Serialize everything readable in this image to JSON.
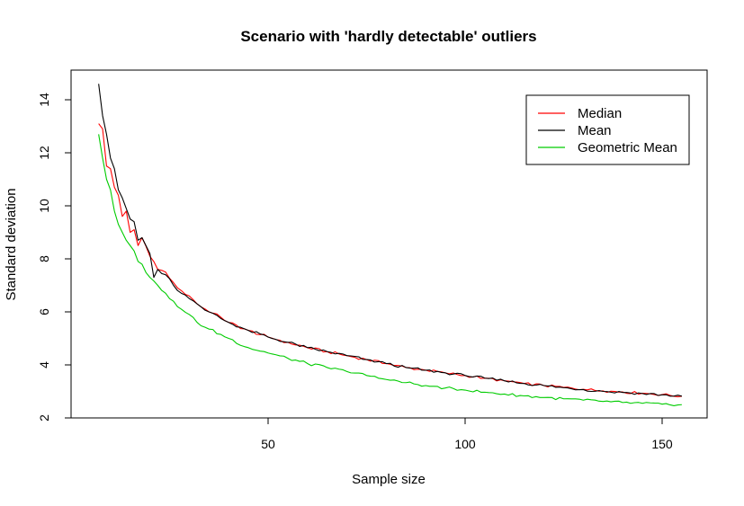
{
  "chart_data": {
    "type": "line",
    "title": "Scenario with 'hardly detectable' outliers",
    "xlabel": "Sample size",
    "ylabel": "Standard deviation",
    "xlim": [
      0,
      157
    ],
    "ylim": [
      2,
      15
    ],
    "x_ticks": [
      50,
      100,
      150
    ],
    "y_ticks": [
      2,
      4,
      6,
      8,
      10,
      12,
      14
    ],
    "grid": false,
    "legend_position": "top-right",
    "x_start": 7,
    "x_end": 155,
    "series": [
      {
        "name": "Median",
        "color": "#ff0000",
        "anchors": [
          [
            7,
            13.1
          ],
          [
            8,
            12.9
          ],
          [
            9,
            11.5
          ],
          [
            10,
            11.4
          ],
          [
            11,
            10.7
          ],
          [
            12,
            10.4
          ],
          [
            13,
            9.6
          ],
          [
            14,
            9.8
          ],
          [
            15,
            9.0
          ],
          [
            16,
            9.1
          ],
          [
            17,
            8.5
          ],
          [
            18,
            8.8
          ],
          [
            20,
            8.1
          ],
          [
            22,
            7.6
          ],
          [
            24,
            7.5
          ],
          [
            26,
            7.1
          ],
          [
            28,
            6.8
          ],
          [
            30,
            6.6
          ],
          [
            32,
            6.3
          ],
          [
            35,
            6.0
          ],
          [
            38,
            5.8
          ],
          [
            40,
            5.6
          ],
          [
            45,
            5.3
          ],
          [
            50,
            5.05
          ],
          [
            55,
            4.85
          ],
          [
            60,
            4.65
          ],
          [
            65,
            4.5
          ],
          [
            70,
            4.35
          ],
          [
            75,
            4.2
          ],
          [
            80,
            4.05
          ],
          [
            85,
            3.9
          ],
          [
            90,
            3.8
          ],
          [
            95,
            3.7
          ],
          [
            100,
            3.6
          ],
          [
            105,
            3.5
          ],
          [
            110,
            3.4
          ],
          [
            115,
            3.3
          ],
          [
            120,
            3.22
          ],
          [
            125,
            3.15
          ],
          [
            130,
            3.08
          ],
          [
            135,
            3.02
          ],
          [
            140,
            2.98
          ],
          [
            145,
            2.93
          ],
          [
            150,
            2.88
          ],
          [
            155,
            2.82
          ]
        ]
      },
      {
        "name": "Mean",
        "color": "#000000",
        "anchors": [
          [
            7,
            14.6
          ],
          [
            8,
            13.4
          ],
          [
            9,
            12.7
          ],
          [
            10,
            11.8
          ],
          [
            11,
            11.4
          ],
          [
            12,
            10.6
          ],
          [
            13,
            10.3
          ],
          [
            14,
            9.9
          ],
          [
            15,
            9.5
          ],
          [
            16,
            9.4
          ],
          [
            17,
            8.7
          ],
          [
            18,
            8.8
          ],
          [
            20,
            8.2
          ],
          [
            21,
            7.3
          ],
          [
            22,
            7.6
          ],
          [
            24,
            7.4
          ],
          [
            26,
            7.0
          ],
          [
            28,
            6.7
          ],
          [
            30,
            6.5
          ],
          [
            32,
            6.3
          ],
          [
            35,
            6.0
          ],
          [
            38,
            5.75
          ],
          [
            40,
            5.6
          ],
          [
            45,
            5.3
          ],
          [
            50,
            5.05
          ],
          [
            55,
            4.85
          ],
          [
            60,
            4.65
          ],
          [
            65,
            4.5
          ],
          [
            70,
            4.35
          ],
          [
            75,
            4.2
          ],
          [
            80,
            4.05
          ],
          [
            85,
            3.9
          ],
          [
            90,
            3.8
          ],
          [
            95,
            3.7
          ],
          [
            100,
            3.6
          ],
          [
            105,
            3.5
          ],
          [
            110,
            3.4
          ],
          [
            115,
            3.3
          ],
          [
            120,
            3.22
          ],
          [
            125,
            3.14
          ],
          [
            130,
            3.07
          ],
          [
            135,
            3.0
          ],
          [
            140,
            2.96
          ],
          [
            145,
            2.92
          ],
          [
            150,
            2.87
          ],
          [
            155,
            2.82
          ]
        ]
      },
      {
        "name": "Geometric Mean",
        "color": "#00cc00",
        "anchors": [
          [
            7,
            12.7
          ],
          [
            8,
            11.8
          ],
          [
            9,
            11.0
          ],
          [
            10,
            10.6
          ],
          [
            11,
            9.8
          ],
          [
            12,
            9.3
          ],
          [
            13,
            9.0
          ],
          [
            14,
            8.7
          ],
          [
            15,
            8.5
          ],
          [
            16,
            8.3
          ],
          [
            17,
            7.9
          ],
          [
            18,
            7.8
          ],
          [
            20,
            7.3
          ],
          [
            22,
            7.0
          ],
          [
            24,
            6.7
          ],
          [
            26,
            6.4
          ],
          [
            28,
            6.1
          ],
          [
            30,
            5.9
          ],
          [
            32,
            5.6
          ],
          [
            35,
            5.35
          ],
          [
            38,
            5.15
          ],
          [
            40,
            5.0
          ],
          [
            45,
            4.65
          ],
          [
            50,
            4.45
          ],
          [
            55,
            4.25
          ],
          [
            60,
            4.05
          ],
          [
            65,
            3.9
          ],
          [
            70,
            3.75
          ],
          [
            75,
            3.6
          ],
          [
            80,
            3.45
          ],
          [
            85,
            3.33
          ],
          [
            90,
            3.22
          ],
          [
            95,
            3.13
          ],
          [
            100,
            3.05
          ],
          [
            105,
            2.97
          ],
          [
            110,
            2.9
          ],
          [
            115,
            2.83
          ],
          [
            120,
            2.77
          ],
          [
            125,
            2.72
          ],
          [
            130,
            2.67
          ],
          [
            135,
            2.62
          ],
          [
            140,
            2.58
          ],
          [
            145,
            2.55
          ],
          [
            150,
            2.52
          ],
          [
            155,
            2.5
          ]
        ]
      }
    ]
  }
}
